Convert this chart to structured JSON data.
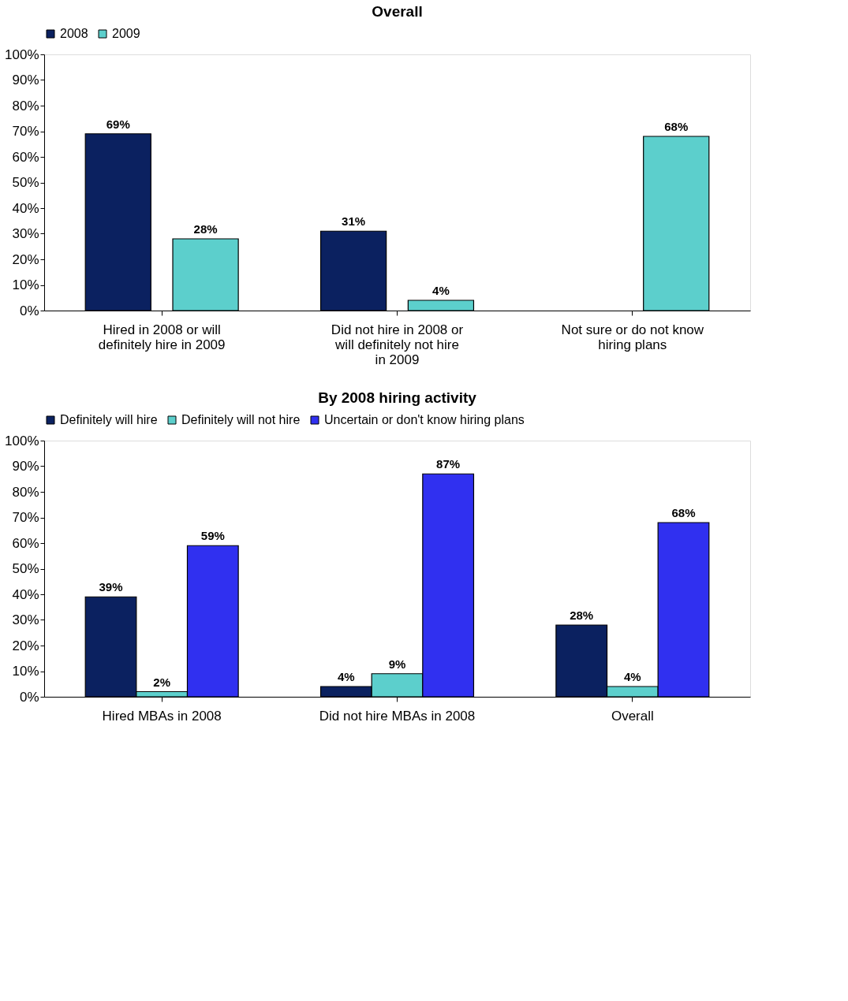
{
  "chart_data": [
    {
      "type": "bar",
      "title": "Overall",
      "categories": [
        "Hired in 2008 or will definitely hire in 2009",
        "Did not hire in 2008 or will definitely not hire in 2009",
        "Not sure or do not know hiring plans"
      ],
      "series": [
        {
          "name": "2008",
          "color": "#0b2160",
          "values": [
            69,
            31,
            null
          ],
          "value_labels": [
            "69%",
            "31%",
            null
          ]
        },
        {
          "name": "2009",
          "color": "#5ccfcc",
          "values": [
            28,
            4,
            68
          ],
          "value_labels": [
            "28%",
            "4%",
            "68%"
          ]
        }
      ],
      "ylim": [
        0,
        100
      ],
      "yticks": [
        {
          "value": 0,
          "label": "0%"
        },
        {
          "value": 10,
          "label": "10%"
        },
        {
          "value": 20,
          "label": "20%"
        },
        {
          "value": 30,
          "label": "30%"
        },
        {
          "value": 40,
          "label": "40%"
        },
        {
          "value": 50,
          "label": "50%"
        },
        {
          "value": 60,
          "label": "60%"
        },
        {
          "value": 70,
          "label": "70%"
        },
        {
          "value": 80,
          "label": "80%"
        },
        {
          "value": 90,
          "label": "90%"
        },
        {
          "value": 100,
          "label": "100%"
        }
      ],
      "legend": "top",
      "grid": false
    },
    {
      "type": "bar",
      "title": "By 2008 hiring activity",
      "categories": [
        "Hired MBAs in 2008",
        "Did not hire MBAs in 2008",
        "Overall"
      ],
      "series": [
        {
          "name": "Definitely will hire",
          "color": "#0b2160",
          "values": [
            39,
            4,
            28
          ],
          "value_labels": [
            "39%",
            "4%",
            "28%"
          ]
        },
        {
          "name": "Definitely will not hire",
          "color": "#5ccfcc",
          "values": [
            2,
            9,
            4
          ],
          "value_labels": [
            "2%",
            "9%",
            "4%"
          ]
        },
        {
          "name": "Uncertain or don't know hiring plans",
          "color": "#3030f0",
          "values": [
            59,
            87,
            68
          ],
          "value_labels": [
            "59%",
            "87%",
            "68%"
          ]
        }
      ],
      "ylim": [
        0,
        100
      ],
      "yticks": [
        {
          "value": 0,
          "label": "0%"
        },
        {
          "value": 10,
          "label": "10%"
        },
        {
          "value": 20,
          "label": "20%"
        },
        {
          "value": 30,
          "label": "30%"
        },
        {
          "value": 40,
          "label": "40%"
        },
        {
          "value": 50,
          "label": "50%"
        },
        {
          "value": 60,
          "label": "60%"
        },
        {
          "value": 70,
          "label": "70%"
        },
        {
          "value": 80,
          "label": "80%"
        },
        {
          "value": 90,
          "label": "90%"
        },
        {
          "value": 100,
          "label": "100%"
        }
      ],
      "legend": "top",
      "grid": false
    }
  ]
}
